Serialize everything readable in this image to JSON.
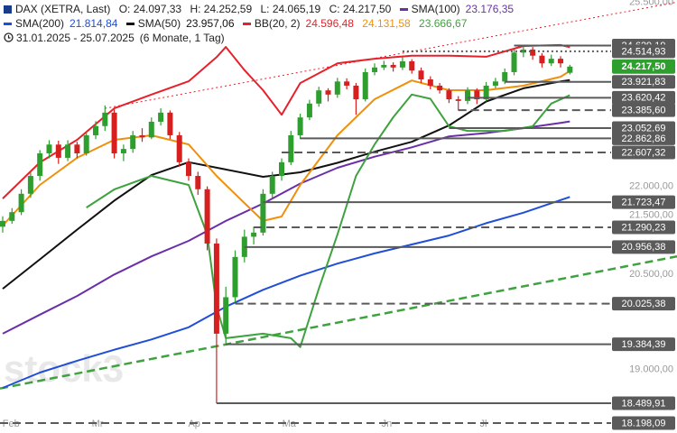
{
  "chart_data": {
    "type": "candlestick",
    "title": "DAX (XETRA, Last)",
    "header_stats": [
      "O: 24.097,33",
      "H: 24.252,59",
      "L: 24.065,19",
      "C: 24.217,50"
    ],
    "period": "31.01.2025 - 25.07.2025",
    "period_note": "(6 Monate, 1 Tag)",
    "watermark": "stock3",
    "log_scale": true,
    "up_color": "#2e9e2e",
    "down_color": "#d62020",
    "xlim": [
      -0.29,
      72.52
    ],
    "ylim": [
      18054,
      25545
    ],
    "xticks": [
      {
        "value": 0.9,
        "label": "Feb"
      },
      {
        "value": 10.2,
        "label": "Mr"
      },
      {
        "value": 20.6,
        "label": "Ap"
      },
      {
        "value": 30.8,
        "label": "Ma"
      },
      {
        "value": 41.3,
        "label": "Jn"
      },
      {
        "value": 51.7,
        "label": "Jl"
      }
    ],
    "yticks": [
      {
        "value": 25500,
        "label": "25.500,00"
      },
      {
        "value": 22000,
        "label": "22.000,00"
      },
      {
        "value": 21500,
        "label": "21.500,00"
      },
      {
        "value": 20500,
        "label": "20.500,00"
      },
      {
        "value": 19000,
        "label": "19.000,00"
      }
    ],
    "candles": [
      [
        21300,
        21480,
        21200,
        21400
      ],
      [
        21400,
        21620,
        21350,
        21550
      ],
      [
        21550,
        21950,
        21500,
        21870
      ],
      [
        21870,
        22260,
        21800,
        22185
      ],
      [
        22185,
        22650,
        22100,
        22590
      ],
      [
        22590,
        22830,
        22500,
        22750
      ],
      [
        22750,
        22820,
        22400,
        22510
      ],
      [
        22510,
        22830,
        22450,
        22750
      ],
      [
        22750,
        22800,
        22500,
        22590
      ],
      [
        22590,
        23000,
        22550,
        22920
      ],
      [
        22920,
        23180,
        22850,
        23090
      ],
      [
        23090,
        23476,
        23000,
        23340
      ],
      [
        23340,
        23400,
        22500,
        22590
      ],
      [
        22590,
        22750,
        22450,
        22670
      ],
      [
        22670,
        23000,
        22600,
        22920
      ],
      [
        22920,
        23050,
        22800,
        22880
      ],
      [
        22880,
        23250,
        22850,
        23170
      ],
      [
        23170,
        23420,
        23100,
        23340
      ],
      [
        23340,
        23380,
        22850,
        22920
      ],
      [
        22920,
        22980,
        22350,
        22430
      ],
      [
        22430,
        22500,
        22100,
        22185
      ],
      [
        22185,
        22260,
        21850,
        21950
      ],
      [
        21950,
        22000,
        20900,
        21015
      ],
      [
        21015,
        21100,
        18490,
        19550
      ],
      [
        19550,
        20300,
        19400,
        20130
      ],
      [
        20130,
        20900,
        20050,
        20790
      ],
      [
        20790,
        21250,
        20700,
        21130
      ],
      [
        21130,
        21300,
        21000,
        21200
      ],
      [
        21200,
        21950,
        21150,
        21870
      ],
      [
        21870,
        22260,
        21800,
        22185
      ],
      [
        22185,
        22500,
        22100,
        22430
      ],
      [
        22430,
        23000,
        22380,
        22920
      ],
      [
        22920,
        23320,
        22850,
        23250
      ],
      [
        23250,
        23580,
        23200,
        23510
      ],
      [
        23510,
        23830,
        23450,
        23760
      ],
      [
        23760,
        23800,
        23550,
        23680
      ],
      [
        23680,
        24000,
        23620,
        23930
      ],
      [
        23930,
        23990,
        23780,
        23850
      ],
      [
        23850,
        23900,
        23300,
        23590
      ],
      [
        23590,
        24180,
        23550,
        24110
      ],
      [
        24110,
        24280,
        24050,
        24200
      ],
      [
        24200,
        24330,
        24150,
        24250
      ],
      [
        24250,
        24300,
        24120,
        24200
      ],
      [
        24200,
        24400,
        24150,
        24320
      ],
      [
        24320,
        24360,
        24080,
        24140
      ],
      [
        24140,
        24200,
        23900,
        23970
      ],
      [
        23970,
        24030,
        23780,
        23850
      ],
      [
        23850,
        23900,
        23700,
        23760
      ],
      [
        23760,
        23800,
        23520,
        23590
      ],
      [
        23590,
        23650,
        23380,
        23560
      ],
      [
        23560,
        23820,
        23500,
        23760
      ],
      [
        23760,
        23800,
        23500,
        23590
      ],
      [
        23590,
        23920,
        23550,
        23850
      ],
      [
        23850,
        24000,
        23800,
        23930
      ],
      [
        23930,
        24180,
        23880,
        24110
      ],
      [
        24110,
        24560,
        24050,
        24490
      ],
      [
        24490,
        24630,
        24400,
        24550
      ],
      [
        24550,
        24600,
        24350,
        24430
      ],
      [
        24430,
        24480,
        24200,
        24280
      ],
      [
        24280,
        24450,
        24230,
        24370
      ],
      [
        24370,
        24420,
        24200,
        24280
      ],
      [
        24097.33,
        24252.59,
        24065.19,
        24217.5
      ]
    ],
    "last_close_label": "24.217,50",
    "series": [
      {
        "name": "SMA(100)",
        "color": "#6a2fa8",
        "legend_value": "23.176,35",
        "x": [
          0,
          4,
          8,
          12,
          16,
          20,
          24,
          28,
          32,
          36,
          40,
          44,
          48,
          52,
          56,
          60,
          61
        ],
        "values": [
          19550,
          19850,
          20150,
          20500,
          20800,
          21060,
          21400,
          21700,
          22050,
          22330,
          22530,
          22700,
          22900,
          22960,
          23050,
          23150,
          23176.35
        ]
      },
      {
        "name": "SMA(200)",
        "color": "#1f4fd6",
        "legend_value": "21.814,84",
        "x": [
          0,
          4,
          8,
          12,
          16,
          20,
          24,
          28,
          32,
          36,
          40,
          44,
          48,
          52,
          56,
          60,
          61
        ],
        "values": [
          18718,
          18950,
          19130,
          19300,
          19460,
          19650,
          19978,
          20250,
          20480,
          20680,
          20850,
          21000,
          21150,
          21360,
          21540,
          21760,
          21814.84
        ]
      },
      {
        "name": "SMA(50)",
        "color": "#111111",
        "legend_value": "23.957,06",
        "x": [
          0,
          4,
          8,
          12,
          16,
          20,
          24,
          28,
          32,
          36,
          40,
          44,
          48,
          52,
          56,
          60,
          61
        ],
        "values": [
          20267,
          20750,
          21250,
          21750,
          22200,
          22430,
          22300,
          22170,
          22250,
          22420,
          22620,
          22800,
          23100,
          23550,
          23800,
          23930,
          23957.06
        ]
      },
      {
        "name": "BB(20, 2)",
        "color": "#e8202a",
        "legend_value": "24.596,48",
        "x": [
          0,
          4,
          8,
          12,
          16,
          20,
          23,
          24,
          26,
          28,
          30,
          32,
          36,
          40,
          44,
          48,
          52,
          56,
          60,
          61
        ],
        "values": [
          21787,
          22427,
          22836,
          23421,
          23680,
          23934,
          24400,
          24600,
          24150,
          23763,
          23300,
          23900,
          24280,
          24370,
          24430,
          24430,
          24410,
          24620,
          24640,
          24596.48
        ]
      },
      {
        "color": "#f0900a",
        "legend_value": "24.131,58",
        "x": [
          0,
          4,
          8,
          12,
          16,
          20,
          23,
          26,
          28,
          30,
          32,
          36,
          40,
          44,
          48,
          52,
          56,
          60,
          61
        ],
        "values": [
          21321,
          22025,
          22510,
          22836,
          22920,
          22753,
          22185,
          21708,
          21400,
          21475,
          22025,
          22920,
          23592,
          23950,
          23763,
          23763,
          23850,
          24020,
          24131.58
        ]
      },
      {
        "color": "#3ea23e",
        "legend_value": "23.666,67",
        "x": [
          9,
          12,
          16,
          20,
          22,
          23,
          24,
          28,
          31,
          32,
          34,
          36,
          38,
          40,
          42,
          44,
          46,
          48,
          50,
          54,
          57,
          59,
          61
        ],
        "values": [
          21630,
          21947,
          22185,
          22025,
          21166,
          19978,
          19480,
          19550,
          19480,
          19340,
          20267,
          21166,
          22185,
          22753,
          23253,
          23680,
          23600,
          23086,
          23000,
          23000,
          23086,
          23510,
          23666.67
        ]
      }
    ],
    "trendlines": [
      {
        "color": "#3ea23e",
        "style": "dashed",
        "x": [
          -0.29,
          72.52
        ],
        "values": [
          18710,
          20800
        ]
      },
      {
        "color": "#e8202a",
        "style": "dotted",
        "x": [
          11,
          72.52
        ],
        "values": [
          23420,
          25500
        ]
      }
    ],
    "levels": [
      {
        "value": 24629.19,
        "label": "24.629,19",
        "style": "solid",
        "from": 55
      },
      {
        "value": 24514.93,
        "label": "24.514,93",
        "style": "dotted",
        "from": 43
      },
      {
        "value": 23921.83,
        "label": "23.921,83",
        "style": "solid",
        "from": 54
      },
      {
        "value": 23620.42,
        "label": "23.620,42",
        "style": "solid",
        "from": 50
      },
      {
        "value": 23385.6,
        "label": "23.385,60",
        "style": "dashed",
        "from": 49
      },
      {
        "value": 23052.69,
        "label": "23.052,69",
        "style": "solid",
        "from": 48
      },
      {
        "value": 22862.86,
        "label": "22.862,86",
        "style": "solid",
        "from": 32
      },
      {
        "value": 22607.32,
        "label": "22.607,32",
        "style": "dashed",
        "from": 30
      },
      {
        "value": 21723.47,
        "label": "21.723,47",
        "style": "solid",
        "from": 28
      },
      {
        "value": 21290.23,
        "label": "21.290,23",
        "style": "dashed",
        "from": 27
      },
      {
        "value": 20956.38,
        "label": "20.956,38",
        "style": "solid",
        "from": 26
      },
      {
        "value": 20025.38,
        "label": "20.025,38",
        "style": "dashed",
        "from": 25
      },
      {
        "value": 19384.39,
        "label": "19.384,39",
        "style": "solid",
        "from": 24
      },
      {
        "value": 18489.91,
        "label": "18.489,91",
        "style": "solid",
        "from": 23
      },
      {
        "value": 18198.09,
        "label": "18.198,09",
        "style": "dashed",
        "from": -0.29
      }
    ]
  }
}
